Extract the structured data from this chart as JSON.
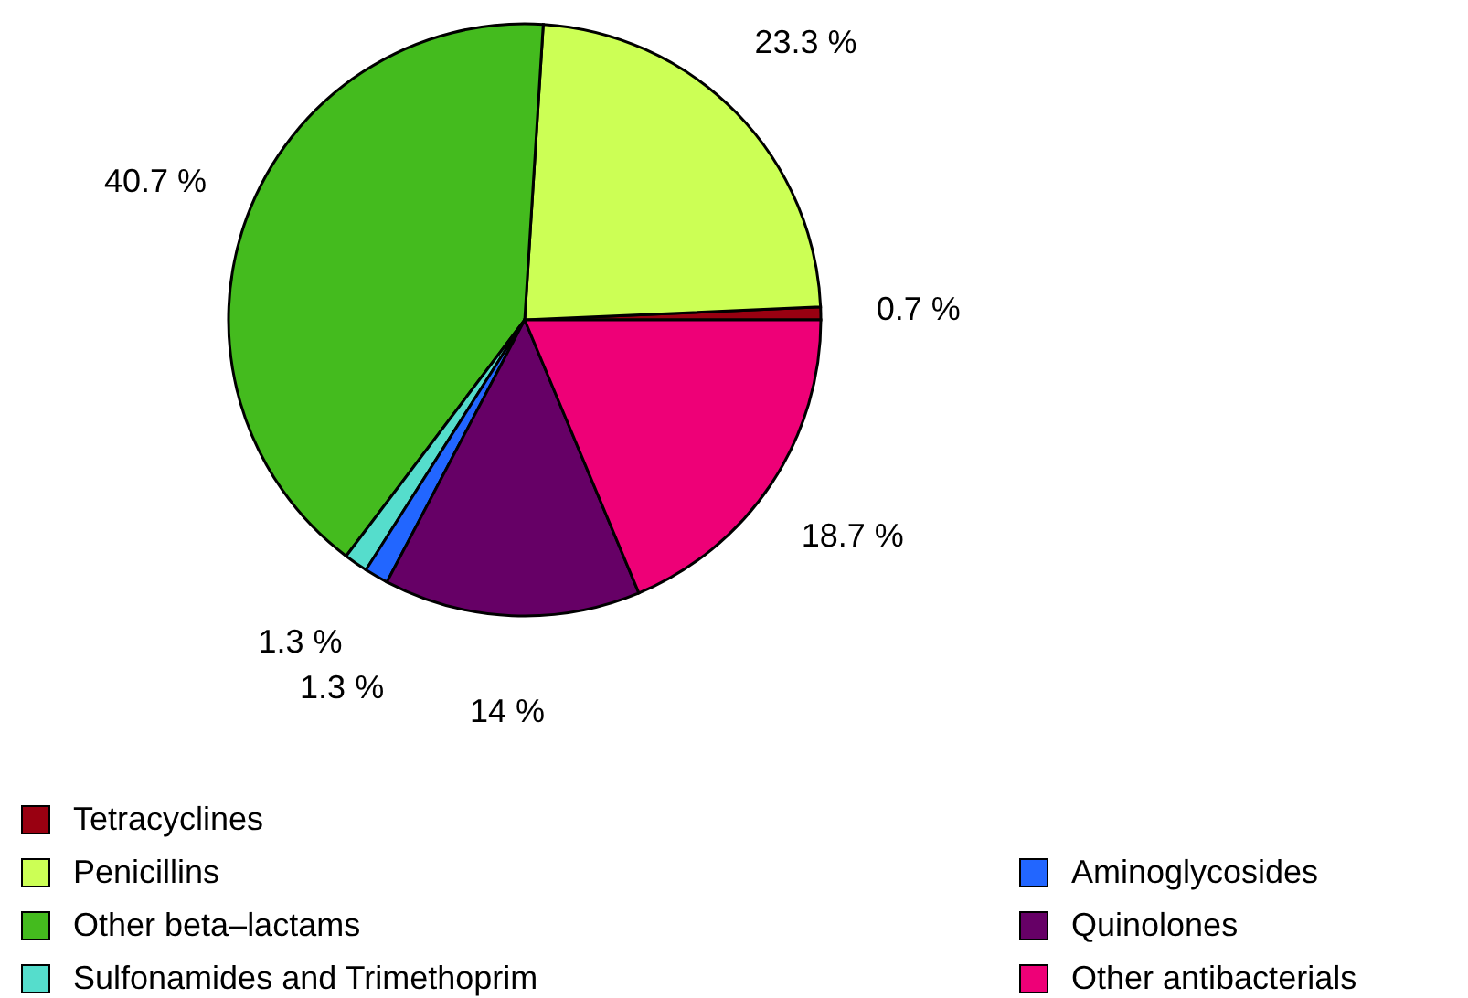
{
  "chart_data": {
    "type": "pie",
    "categories": [
      "Tetracyclines",
      "Penicillins",
      "Other beta–lactams",
      "Sulfonamides and Trimethoprim",
      "Aminoglycosides",
      "Quinolones",
      "Other antibacterials"
    ],
    "values": [
      0.7,
      23.3,
      40.7,
      1.3,
      1.3,
      14,
      18.7
    ],
    "value_labels": [
      "0.7 %",
      "23.3 %",
      "40.7 %",
      "1.3 %",
      "1.3 %",
      "14 %",
      "18.7 %"
    ],
    "colors": [
      "#990011",
      "#ccff55",
      "#44bb1e",
      "#55ddcc",
      "#2266ff",
      "#660066",
      "#ee0077"
    ],
    "legend": "bottom"
  }
}
